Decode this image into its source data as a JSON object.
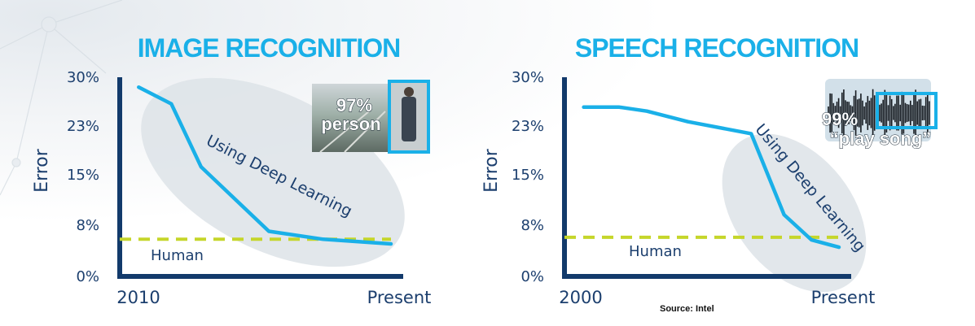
{
  "source": "Source: Intel",
  "colors": {
    "title": "#1ab0e8",
    "axis": "#123a6b",
    "line": "#1ab0e8",
    "human": "#c5d62a",
    "ellipse": "#dde3e8",
    "text": "#1c3f6e"
  },
  "chart_data": [
    {
      "type": "line",
      "title": "IMAGE RECOGNITION",
      "ylabel": "Error",
      "yticks": [
        "30%",
        "23%",
        "15%",
        "8%",
        "0%"
      ],
      "ylim": [
        0,
        30
      ],
      "xticks": [
        "2010",
        "Present"
      ],
      "xlim": [
        0,
        1
      ],
      "series": [
        {
          "x": [
            0.07,
            0.19,
            0.3,
            0.55,
            0.75,
            1.0
          ],
          "values": [
            28.5,
            26,
            16.5,
            6.8,
            5.6,
            4.9
          ]
        }
      ],
      "reference_line": {
        "label": "Human",
        "value": 5.6,
        "style": "dashed"
      },
      "annotation": "Using Deep Learning",
      "inset": {
        "percent": "97%",
        "label": "person"
      }
    },
    {
      "type": "line",
      "title": "SPEECH RECOGNITION",
      "ylabel": "Error",
      "yticks": [
        "30%",
        "23%",
        "15%",
        "8%",
        "0%"
      ],
      "ylim": [
        0,
        30
      ],
      "xticks": [
        "2000",
        "Present"
      ],
      "xlim": [
        0,
        1
      ],
      "series": [
        {
          "x": [
            0.07,
            0.2,
            0.3,
            0.45,
            0.68,
            0.8,
            0.9,
            1.0
          ],
          "values": [
            25.5,
            25.5,
            24.9,
            23.3,
            21.5,
            9.3,
            5.5,
            4.4
          ]
        }
      ],
      "reference_line": {
        "label": "Human",
        "value": 5.9,
        "style": "dashed"
      },
      "annotation": "Using Deep Learning",
      "inset": {
        "percent": "99%",
        "label": "“play song”"
      }
    }
  ]
}
